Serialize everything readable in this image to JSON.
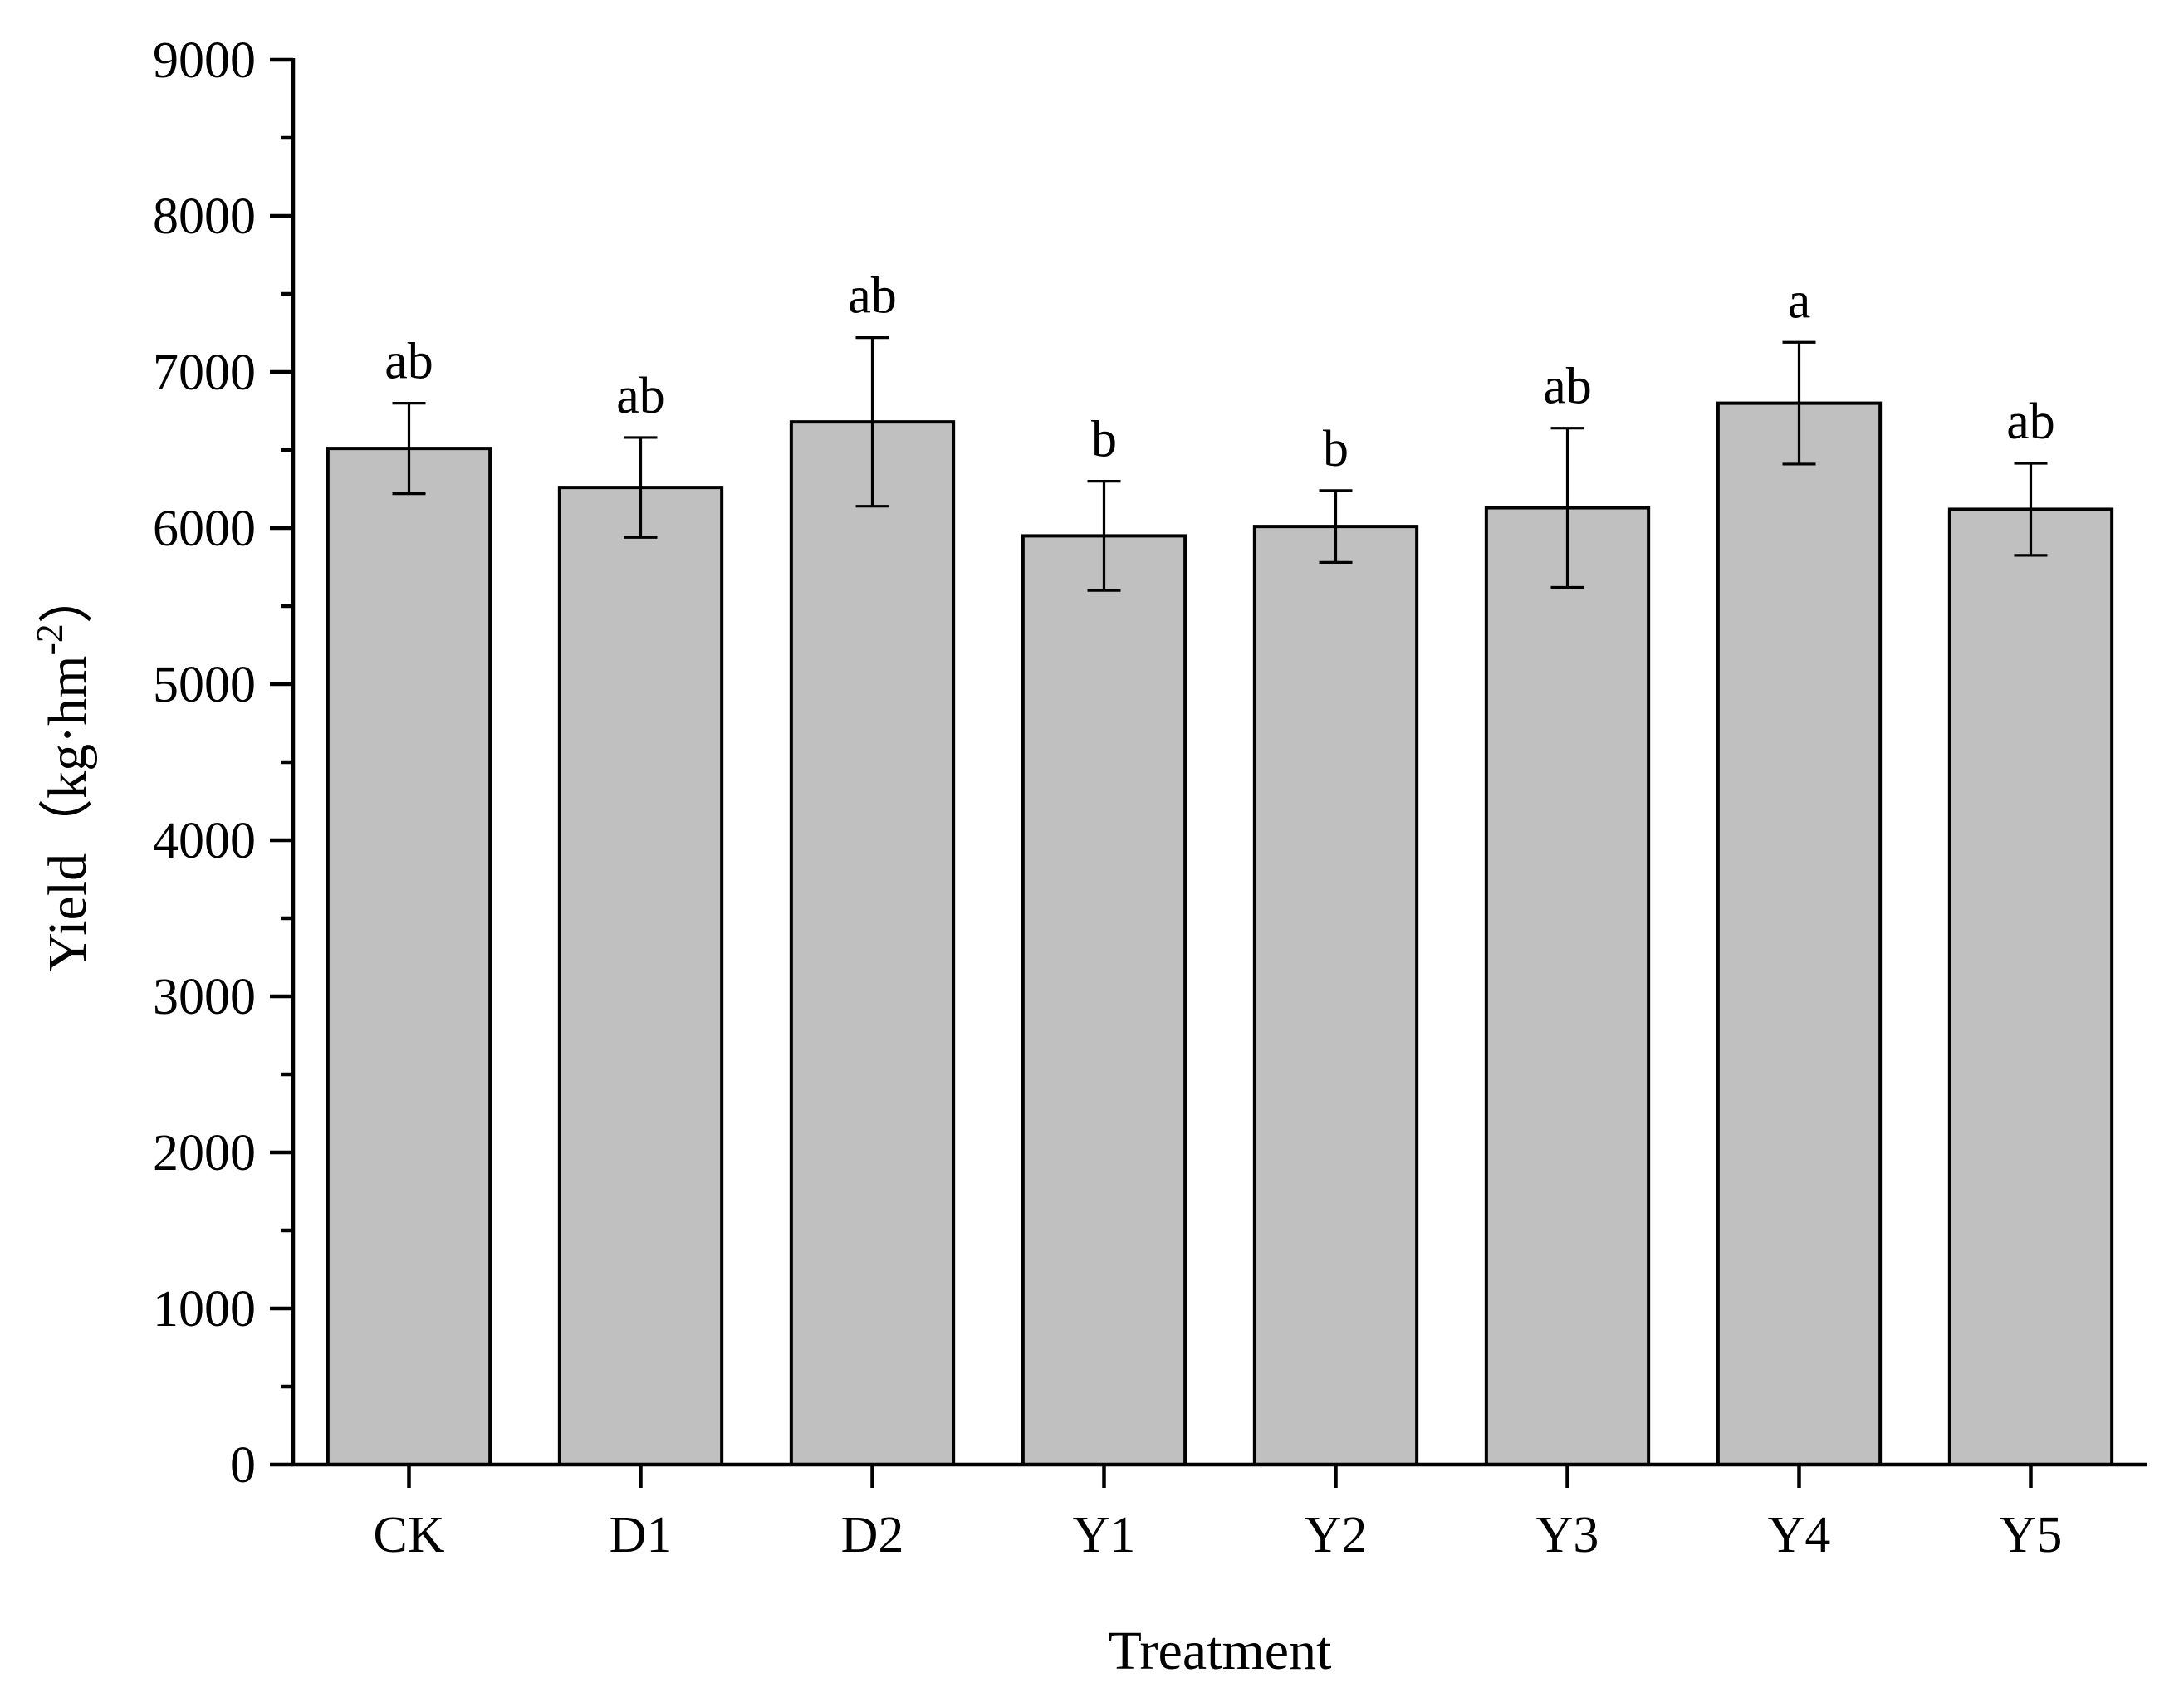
{
  "chart_data": {
    "type": "bar",
    "categories": [
      "CK",
      "D1",
      "D2",
      "Y1",
      "Y2",
      "Y3",
      "Y4",
      "Y5"
    ],
    "values": [
      6510,
      6260,
      6680,
      5950,
      6010,
      6130,
      6800,
      6120
    ],
    "error": [
      290,
      320,
      540,
      350,
      230,
      510,
      390,
      295
    ],
    "significance": [
      "ab",
      "ab",
      "ab",
      "b",
      "b",
      "ab",
      "a",
      "ab"
    ],
    "xlabel": "Treatment",
    "ylabel": "Yield（kg·hm",
    "ylabel_superscript": "-2",
    "ylabel_close": "）",
    "ylim": [
      0,
      9000
    ],
    "yticks": [
      "0",
      "1000",
      "2000",
      "3000",
      "4000",
      "5000",
      "6000",
      "7000",
      "8000",
      "9000"
    ],
    "bar_color": "#c0c0c0",
    "grid": false,
    "legend": "none"
  }
}
